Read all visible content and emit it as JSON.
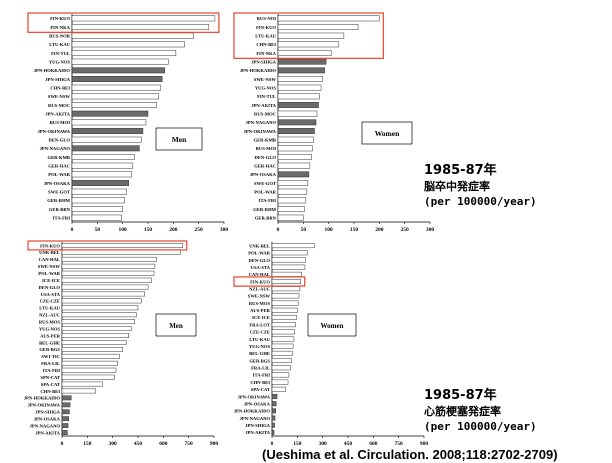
{
  "chart_data": [
    {
      "type": "bar",
      "orientation": "horizontal",
      "legend_label": "Men",
      "categories": [
        "FIN-KUO",
        "FIN-NKA",
        "RUS-NOR",
        "LTU-KAU",
        "FIN-TUL",
        "YUG-NOS",
        "JPN-HOKKAIDO",
        "JPN-SHIGA",
        "CHN-BEI",
        "SWE-NSW",
        "RUS-MOC",
        "JPN-AKITA",
        "RUS-MOI",
        "JPN-OKINAWA",
        "DEN-GLO",
        "JPN-NAGANO",
        "GER-KMB",
        "GER-HAC",
        "POL-WAR",
        "JPN-OSAKA",
        "SWE-GOT",
        "GER-RHM",
        "GER-BRN",
        "ITA-FRI"
      ],
      "values": [
        282,
        270,
        240,
        222,
        205,
        190,
        183,
        178,
        175,
        171,
        167,
        150,
        146,
        140,
        137,
        133,
        123,
        120,
        118,
        112,
        108,
        104,
        100,
        98
      ],
      "japan": [
        false,
        false,
        false,
        false,
        false,
        false,
        true,
        true,
        false,
        false,
        false,
        true,
        false,
        true,
        false,
        true,
        false,
        false,
        false,
        true,
        false,
        false,
        false,
        false
      ],
      "xticks": [
        0,
        50,
        100,
        150,
        200,
        250,
        300
      ],
      "xlim": [
        0,
        300
      ],
      "highlight_categories": [
        "FIN-KUO",
        "FIN-NKA"
      ]
    },
    {
      "type": "bar",
      "orientation": "horizontal",
      "legend_label": "Women",
      "categories": [
        "RUS-NOI",
        "FIN-KUO",
        "LTU-KAU",
        "CHN-BEI",
        "FIN-NKA",
        "JPN-SHIGA",
        "JPN-HOKKAIDO",
        "SWE-NSW",
        "YUG-NOS",
        "FIN-TUL",
        "JPN-AKITA",
        "RUS-MOC",
        "JPN-NAGANO",
        "JPN-OKINAWA",
        "GER-KMB",
        "RUS-MOI",
        "DEN-GLO",
        "GER-HAC",
        "JPN-OSAKA",
        "SWE-GOT",
        "POL-WAR",
        "ITA-FRI",
        "GER-RHM",
        "GER-BRN"
      ],
      "values": [
        200,
        158,
        130,
        120,
        105,
        95,
        92,
        88,
        85,
        82,
        80,
        77,
        75,
        72,
        70,
        68,
        66,
        63,
        61,
        59,
        57,
        55,
        52,
        50
      ],
      "japan": [
        false,
        false,
        false,
        false,
        false,
        true,
        true,
        false,
        false,
        false,
        true,
        false,
        true,
        true,
        false,
        false,
        false,
        false,
        true,
        false,
        false,
        false,
        false,
        false
      ],
      "xticks": [
        0,
        50,
        100,
        150,
        200,
        250,
        300
      ],
      "xlim": [
        0,
        300
      ],
      "highlight_categories": [
        "RUS-NOI",
        "FIN-KUO",
        "LTU-KAU",
        "CHN-BEI",
        "FIN-NKA"
      ]
    },
    {
      "type": "bar",
      "orientation": "horizontal",
      "legend_label": "Men",
      "categories": [
        "FIN-KUO",
        "UNK-BEL",
        "CAN-HAL",
        "SWE-NSW",
        "POL-WAR",
        "ICE-ICE",
        "DEN-GLO",
        "USA-STA",
        "CZE-CZE",
        "LTU-KAU",
        "NZL-AUC",
        "RUS-MOS",
        "YUG-NOS",
        "AUS-PER",
        "BEL-GHE",
        "GER-BGS",
        "SWI-TIC",
        "FRA-LIL",
        "ITA-FRI",
        "SPN-CAT",
        "SPA-CAT",
        "CHN-BEI",
        "JPN-HOKKAIDO",
        "JPN-OKINAWA",
        "JPN-SHIGA",
        "JPN-OSAKA",
        "JPN-NAGANO",
        "JPN-AKITA"
      ],
      "values": [
        715,
        700,
        560,
        550,
        545,
        530,
        510,
        490,
        470,
        450,
        440,
        430,
        410,
        395,
        380,
        360,
        340,
        330,
        320,
        310,
        240,
        200,
        55,
        48,
        44,
        40,
        36,
        32
      ],
      "japan": [
        false,
        false,
        false,
        false,
        false,
        false,
        false,
        false,
        false,
        false,
        false,
        false,
        false,
        false,
        false,
        false,
        false,
        false,
        false,
        false,
        false,
        false,
        true,
        true,
        true,
        true,
        true,
        true
      ],
      "xticks": [
        0,
        150,
        300,
        450,
        600,
        750,
        900
      ],
      "xlim": [
        0,
        900
      ],
      "highlight_categories": [
        "FIN-KUO"
      ]
    },
    {
      "type": "bar",
      "orientation": "horizontal",
      "legend_label": "Women",
      "categories": [
        "UNK-BEL",
        "POL-WAR",
        "DEN-GLO",
        "USA-STA",
        "CAN-HAL",
        "FIN-KUO",
        "NZL-AUC",
        "SWE-NSW",
        "RUS-MOS",
        "AUS-PER",
        "ICE-ICE",
        "FRA-LOT",
        "CZE-CZE",
        "LTU-KAU",
        "YUG-NOS",
        "BEL-GHE",
        "GER-BGS",
        "FRA-LIL",
        "ITA-FRI",
        "CHN-BEI",
        "SPA-CAT",
        "JPN-OKINAWA",
        "JPN-OSAKA",
        "JPN-HOKKAIDO",
        "JPN-NAGANO",
        "JPN-SHIGA",
        "JPN-AKITA"
      ],
      "values": [
        250,
        210,
        200,
        195,
        175,
        170,
        165,
        160,
        155,
        150,
        145,
        140,
        135,
        130,
        125,
        120,
        115,
        110,
        100,
        95,
        80,
        30,
        25,
        22,
        18,
        15,
        12
      ],
      "japan": [
        false,
        false,
        false,
        false,
        false,
        false,
        false,
        false,
        false,
        false,
        false,
        false,
        false,
        false,
        false,
        false,
        false,
        false,
        false,
        false,
        false,
        true,
        true,
        true,
        true,
        true,
        true
      ],
      "xticks": [
        0,
        150,
        300,
        450,
        600,
        750,
        900
      ],
      "xlim": [
        0,
        900
      ],
      "highlight_categories": [
        "FIN-KUO"
      ]
    }
  ],
  "captions": [
    {
      "line1": "1985-87年",
      "line2": "脳卒中発症率",
      "line3": "(per 100000/year)"
    },
    {
      "line1": "1985-87年",
      "line2": "心筋梗塞発症率",
      "line3": "(per 100000/year)"
    }
  ],
  "citation": "(Ueshima et al. Circulation. 2008;118:2702-2709)",
  "colors": {
    "bar_light": "#ffffff",
    "bar_japan": "#6a6a6a",
    "bar_stroke": "#333333",
    "highlight": "#e8432e",
    "axis": "#000000"
  }
}
